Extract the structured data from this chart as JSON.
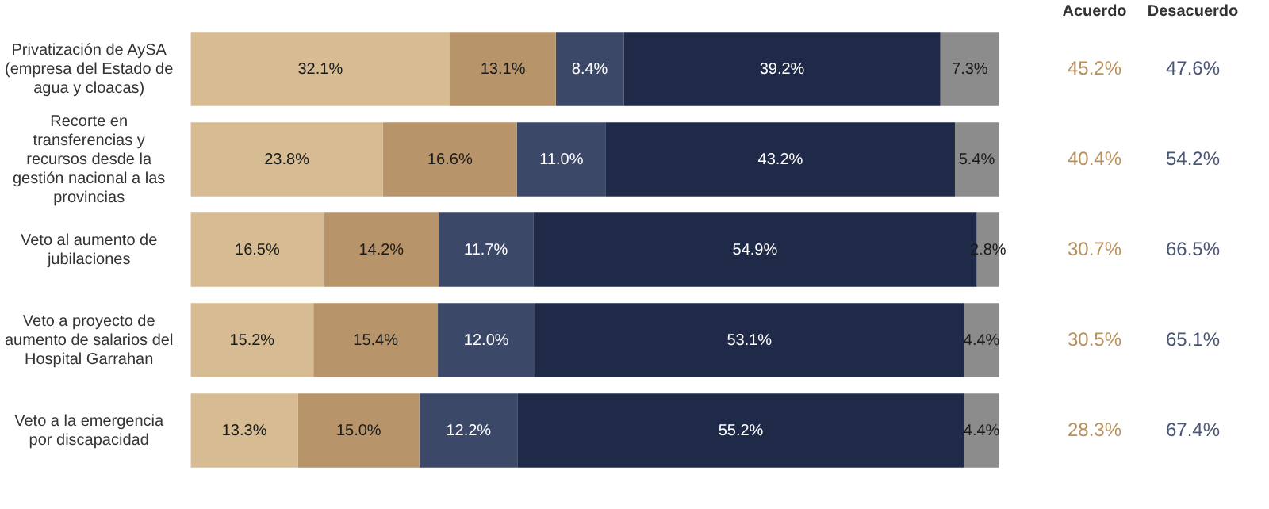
{
  "chart_data": {
    "type": "bar",
    "orientation": "horizontal",
    "stacked": true,
    "grid": false,
    "legend": false,
    "tick_labels": "y",
    "categories": [
      "Privatización de AySA (empresa del Estado de agua y cloacas)",
      "Recorte en transferencias y recursos desde la gestión nacional a las provincias",
      "Veto al aumento de jubilaciones",
      "Veto a proyecto de aumento de salarios del Hospital Garrahan",
      "Veto a la emergencia por discapacidad"
    ],
    "series": [
      {
        "color": "#d6bb93",
        "values": [
          32.1,
          23.8,
          16.5,
          15.2,
          13.3
        ],
        "value_labels": [
          "32.1%",
          "23.8%",
          "16.5%",
          "15.2%",
          "13.3%"
        ]
      },
      {
        "color": "#b8946a",
        "values": [
          13.1,
          16.6,
          14.2,
          15.4,
          15.0
        ],
        "value_labels": [
          "13.1%",
          "16.6%",
          "14.2%",
          "15.4%",
          "15.0%"
        ]
      },
      {
        "color": "#3b4868",
        "values": [
          8.4,
          11.0,
          11.7,
          12.0,
          12.2
        ],
        "value_labels": [
          "8.4%",
          "11.0%",
          "11.7%",
          "12.0%",
          "12.2%"
        ]
      },
      {
        "color": "#1f2a48",
        "values": [
          39.2,
          43.2,
          54.9,
          53.1,
          55.2
        ],
        "value_labels": [
          "39.2%",
          "43.2%",
          "54.9%",
          "53.1%",
          "55.2%"
        ]
      },
      {
        "color": "#8c8c8c",
        "values": [
          7.3,
          5.4,
          2.8,
          4.4,
          4.4
        ],
        "value_labels": [
          "7.3%",
          "5.4%",
          "2.8%",
          "4.4%",
          "4.4%"
        ]
      }
    ],
    "annotations": [
      "Acuerdo",
      "Desacuerdo",
      "45.2%",
      "47.6%",
      "40.4%",
      "54.2%",
      "30.7%",
      "66.5%",
      "30.5%",
      "65.1%",
      "28.3%",
      "67.4%"
    ]
  }
}
